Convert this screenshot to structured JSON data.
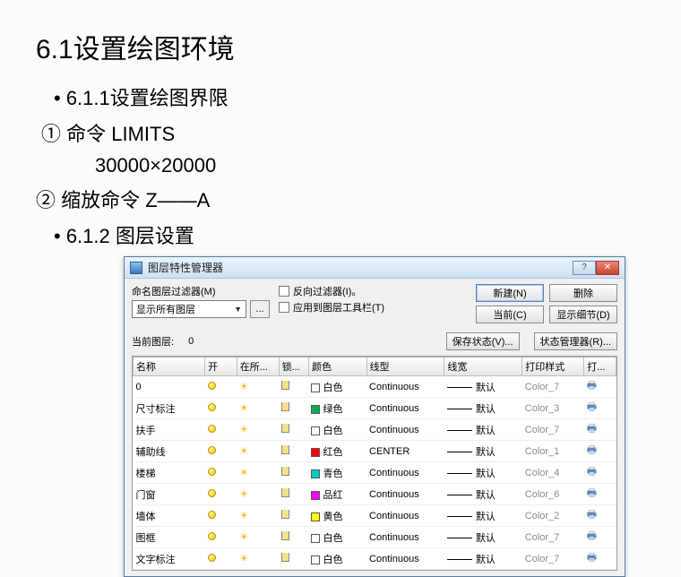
{
  "heading": "6.1设置绘图环境",
  "lines": {
    "l1": "• 6.1.1设置绘图界限",
    "l2": "① 命令 LIMITS",
    "l3": "30000×20000",
    "l4": "② 缩放命令 Z——A",
    "l5": "• 6.1.2 图层设置"
  },
  "window": {
    "title": "图层特性管理器",
    "filter_label": "命名图层过滤器(M)",
    "filter_value": "显示所有图层",
    "dots": "...",
    "chk1": "反向过滤器(I)。",
    "chk2": "应用到图层工具栏(T)",
    "btn_new": "新建(N)",
    "btn_delete": "删除",
    "btn_current": "当前(C)",
    "btn_details": "显示细节(D)",
    "btn_savestate": "保存状态(V)...",
    "btn_statemgr": "状态管理器(R)...",
    "current_layer_label": "当前图层:",
    "current_layer_value": "0",
    "columns": {
      "name": "名称",
      "on": "开",
      "freeze": "在所...",
      "lock": "锁...",
      "color": "颜色",
      "ltype": "线型",
      "lweight": "线宽",
      "pstyle": "打印样式",
      "plot": "打..."
    },
    "rows": [
      {
        "name": "0",
        "color_hex": "#ffffff",
        "color_name": "白色",
        "ltype": "Continuous",
        "lweight": "默认",
        "pstyle": "Color_7"
      },
      {
        "name": "尺寸标注",
        "color_hex": "#00b050",
        "color_name": "绿色",
        "ltype": "Continuous",
        "lweight": "默认",
        "pstyle": "Color_3"
      },
      {
        "name": "扶手",
        "color_hex": "#ffffff",
        "color_name": "白色",
        "ltype": "Continuous",
        "lweight": "默认",
        "pstyle": "Color_7"
      },
      {
        "name": "辅助线",
        "color_hex": "#ff0000",
        "color_name": "红色",
        "ltype": "CENTER",
        "lweight": "默认",
        "pstyle": "Color_1"
      },
      {
        "name": "楼梯",
        "color_hex": "#00c8c8",
        "color_name": "青色",
        "ltype": "Continuous",
        "lweight": "默认",
        "pstyle": "Color_4"
      },
      {
        "name": "门窗",
        "color_hex": "#ff00ff",
        "color_name": "品红",
        "ltype": "Continuous",
        "lweight": "默认",
        "pstyle": "Color_6"
      },
      {
        "name": "墙体",
        "color_hex": "#ffff00",
        "color_name": "黄色",
        "ltype": "Continuous",
        "lweight": "默认",
        "pstyle": "Color_2"
      },
      {
        "name": "图框",
        "color_hex": "#ffffff",
        "color_name": "白色",
        "ltype": "Continuous",
        "lweight": "默认",
        "pstyle": "Color_7"
      },
      {
        "name": "文字标注",
        "color_hex": "#ffffff",
        "color_name": "白色",
        "ltype": "Continuous",
        "lweight": "默认",
        "pstyle": "Color_7"
      }
    ]
  }
}
